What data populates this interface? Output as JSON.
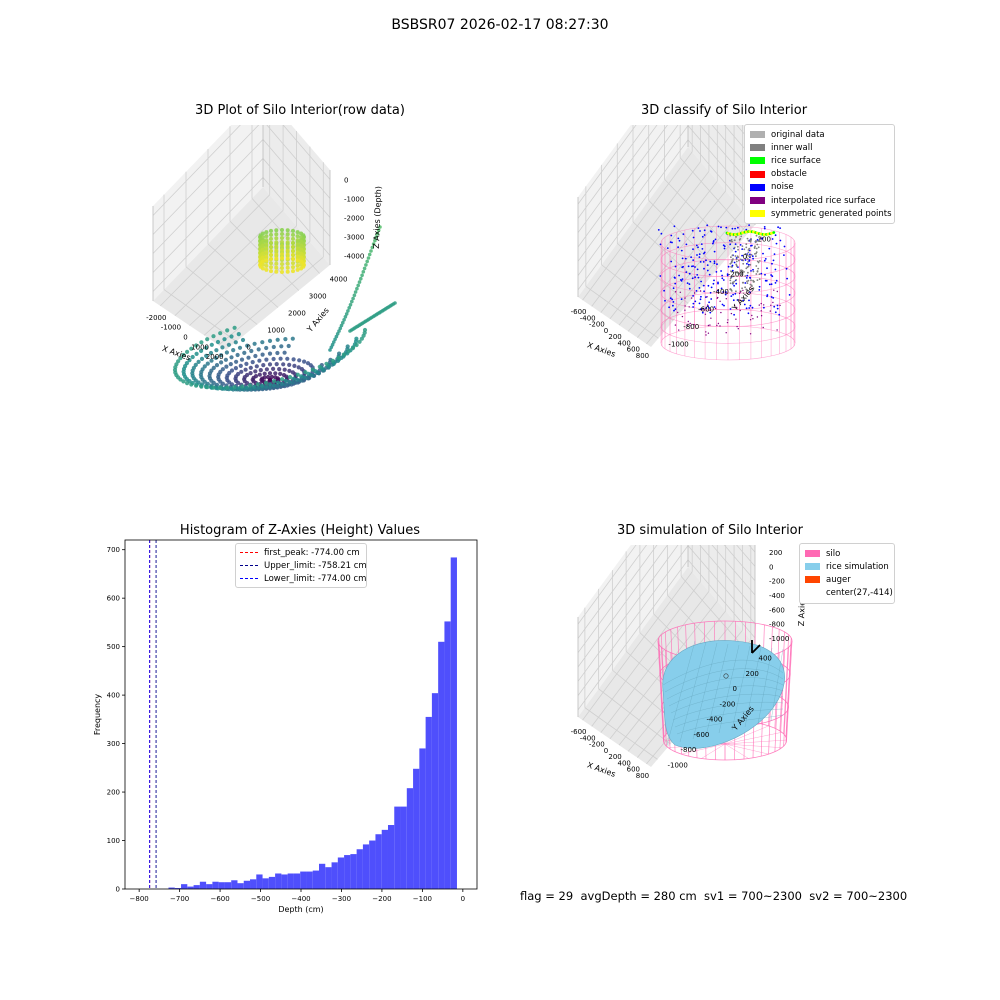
{
  "suptitle": "BSBSR07 2026-02-17 08:27:30",
  "footer": "flag = 29  avgDepth = 280 cm  sv1 = 700~2300  sv2 = 700~2300",
  "chart_data": [
    {
      "type": "scatter3d",
      "title": "3D Plot of Silo Interior(row data)",
      "xlabel": "X Axies",
      "ylabel": "Y Axies",
      "zlabel": "Z Axies (Depth)",
      "xticks": [
        "-2000",
        "-1000",
        "0",
        "1000",
        "2000"
      ],
      "yticks": [
        "0",
        "1000",
        "2000",
        "3000",
        "4000"
      ],
      "zticks": [
        "0",
        "-1000",
        "-2000",
        "-3000",
        "-4000"
      ],
      "colormap": [
        "#440154",
        "#3b528b",
        "#21918c",
        "#5ec962",
        "#fde725"
      ],
      "grid": true
    },
    {
      "type": "scatter3d",
      "title": "3D classify of Silo Interior",
      "xlabel": "X Axies",
      "ylabel": "Y Axies",
      "zlabel": "Z Axies (Depth)",
      "xticks": [
        "-600",
        "-400",
        "-200",
        "0",
        "200",
        "400",
        "600",
        "800"
      ],
      "yticks": [
        "-1000",
        "-800",
        "-600",
        "-400",
        "-200",
        "0",
        "200"
      ],
      "zticks": [
        "200",
        "0",
        "-200",
        "-400",
        "-600",
        "-800",
        "-1000"
      ],
      "legend": [
        {
          "label": "original data",
          "color": "#b0b0b0"
        },
        {
          "label": "inner wall",
          "color": "#808080"
        },
        {
          "label": "rice surface",
          "color": "#00ff00"
        },
        {
          "label": "obstacle",
          "color": "#ff0000"
        },
        {
          "label": "noise",
          "color": "#0000ff"
        },
        {
          "label": "interpolated rice surface",
          "color": "#800080"
        },
        {
          "label": "symmetric generated points",
          "color": "#ffff00"
        }
      ],
      "legend_position": "top-right",
      "grid": true
    },
    {
      "type": "bar",
      "title": "Histogram of Z-Axies (Height) Values",
      "xlabel": "Depth (cm)",
      "ylabel": "Frequency",
      "xlim": [
        -835,
        35
      ],
      "ylim": [
        0,
        720
      ],
      "xticks": [
        -800,
        -700,
        -600,
        -500,
        -400,
        -300,
        -200,
        -100,
        0
      ],
      "yticks": [
        0,
        100,
        200,
        300,
        400,
        500,
        600,
        700
      ],
      "bar_color": "#4f4ffc",
      "bins": [
        {
          "x0": -774.0,
          "x1": -758.5,
          "y": 0
        },
        {
          "x0": -758.5,
          "x1": -743.0,
          "y": 0
        },
        {
          "x0": -743.0,
          "x1": -727.5,
          "y": 0
        },
        {
          "x0": -727.5,
          "x1": -712.0,
          "y": 3
        },
        {
          "x0": -712.0,
          "x1": -696.5,
          "y": 2
        },
        {
          "x0": -696.5,
          "x1": -681.0,
          "y": 10
        },
        {
          "x0": -681.0,
          "x1": -665.5,
          "y": 5
        },
        {
          "x0": -665.5,
          "x1": -650.0,
          "y": 8
        },
        {
          "x0": -650.0,
          "x1": -634.5,
          "y": 15
        },
        {
          "x0": -634.5,
          "x1": -619.0,
          "y": 10
        },
        {
          "x0": -619.0,
          "x1": -603.5,
          "y": 15
        },
        {
          "x0": -603.5,
          "x1": -588.0,
          "y": 14
        },
        {
          "x0": -588.0,
          "x1": -572.5,
          "y": 14
        },
        {
          "x0": -572.5,
          "x1": -557.0,
          "y": 18
        },
        {
          "x0": -557.0,
          "x1": -541.5,
          "y": 12
        },
        {
          "x0": -541.5,
          "x1": -526.0,
          "y": 17
        },
        {
          "x0": -526.0,
          "x1": -510.5,
          "y": 20
        },
        {
          "x0": -510.5,
          "x1": -495.0,
          "y": 30
        },
        {
          "x0": -495.0,
          "x1": -479.5,
          "y": 22
        },
        {
          "x0": -479.5,
          "x1": -464.0,
          "y": 25
        },
        {
          "x0": -464.0,
          "x1": -448.5,
          "y": 32
        },
        {
          "x0": -448.5,
          "x1": -433.0,
          "y": 30
        },
        {
          "x0": -433.0,
          "x1": -417.5,
          "y": 32
        },
        {
          "x0": -417.5,
          "x1": -402.0,
          "y": 32
        },
        {
          "x0": -402.0,
          "x1": -386.5,
          "y": 36
        },
        {
          "x0": -386.5,
          "x1": -371.0,
          "y": 36
        },
        {
          "x0": -371.0,
          "x1": -355.5,
          "y": 38
        },
        {
          "x0": -355.5,
          "x1": -340.0,
          "y": 52
        },
        {
          "x0": -340.0,
          "x1": -324.5,
          "y": 45
        },
        {
          "x0": -324.5,
          "x1": -309.0,
          "y": 55
        },
        {
          "x0": -309.0,
          "x1": -293.5,
          "y": 65
        },
        {
          "x0": -293.5,
          "x1": -278.0,
          "y": 70
        },
        {
          "x0": -278.0,
          "x1": -262.5,
          "y": 72
        },
        {
          "x0": -262.5,
          "x1": -247.0,
          "y": 82
        },
        {
          "x0": -247.0,
          "x1": -231.5,
          "y": 92
        },
        {
          "x0": -231.5,
          "x1": -216.0,
          "y": 100
        },
        {
          "x0": -216.0,
          "x1": -200.5,
          "y": 113
        },
        {
          "x0": -200.5,
          "x1": -185.0,
          "y": 122
        },
        {
          "x0": -185.0,
          "x1": -169.5,
          "y": 132
        },
        {
          "x0": -169.5,
          "x1": -154.0,
          "y": 170
        },
        {
          "x0": -154.0,
          "x1": -138.5,
          "y": 170
        },
        {
          "x0": -138.5,
          "x1": -123.0,
          "y": 208
        },
        {
          "x0": -123.0,
          "x1": -107.5,
          "y": 248
        },
        {
          "x0": -107.5,
          "x1": -92.0,
          "y": 290
        },
        {
          "x0": -92.0,
          "x1": -76.5,
          "y": 355
        },
        {
          "x0": -76.5,
          "x1": -61.0,
          "y": 404
        },
        {
          "x0": -61.0,
          "x1": -45.5,
          "y": 510
        },
        {
          "x0": -45.5,
          "x1": -30.0,
          "y": 552
        },
        {
          "x0": -30.0,
          "x1": -14.5,
          "y": 684
        }
      ],
      "vlines": [
        {
          "x": -774.0,
          "color": "#ff0000",
          "label": "first_peak: -774.00 cm"
        },
        {
          "x": -758.21,
          "color": "#00008b",
          "label": "Upper_limit: -758.21 cm"
        },
        {
          "x": -774.0,
          "color": "#0000ff",
          "label": "Lower_limit: -774.00 cm"
        }
      ],
      "legend_position": "top-center"
    },
    {
      "type": "surface3d",
      "title": "3D simulation of Silo Interior",
      "xlabel": "X Axies",
      "ylabel": "Y Axies",
      "zlabel": "Z Axies (Depth)",
      "xticks": [
        "-600",
        "-400",
        "-200",
        "0",
        "200",
        "400",
        "600",
        "800"
      ],
      "yticks": [
        "-1000",
        "-800",
        "-600",
        "-400",
        "-200",
        "0",
        "200",
        "400"
      ],
      "zticks": [
        "200",
        "0",
        "-200",
        "-400",
        "-600",
        "-800",
        "-1000"
      ],
      "legend": [
        {
          "label": "silo",
          "color": "#ff69b4"
        },
        {
          "label": "rice simulation",
          "color": "#87ceeb"
        },
        {
          "label": "auger",
          "color": "#ff4500"
        },
        {
          "label": "center(27,-414)",
          "color": ""
        }
      ],
      "legend_position": "top-right",
      "grid": true
    }
  ]
}
